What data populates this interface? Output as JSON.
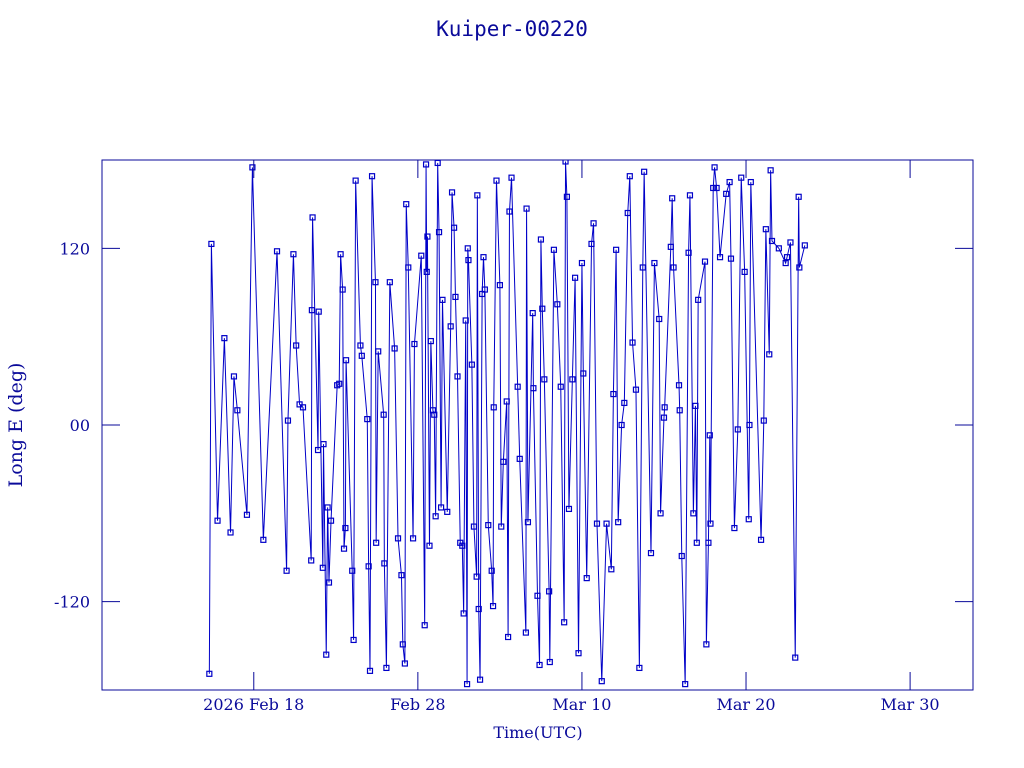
{
  "chart_data": {
    "type": "line",
    "title": "Kuiper-00220",
    "x_label": "Time(UTC)",
    "y_label": "Long E (deg)",
    "color": "#0000c8",
    "markers": "square",
    "xlim": [
      "2026-02-08T18:00Z",
      "2026-04-02T20:00Z"
    ],
    "xticks": [
      {
        "value": "2026-02-18T00:00Z",
        "label": "2026 Feb 18"
      },
      {
        "value": "2026-02-28T00:00Z",
        "label": "Feb 28"
      },
      {
        "value": "2026-03-10T00:00Z",
        "label": "Mar 10"
      },
      {
        "value": "2026-03-20T00:00Z",
        "label": "Mar 20"
      },
      {
        "value": "2026-03-30T00:00Z",
        "label": "Mar 30"
      }
    ],
    "ylim": [
      -180,
      180
    ],
    "yticks": [
      -120,
      {
        "value": 0,
        "label": "00"
      },
      120
    ],
    "x": [
      "2026-02-15T07:00Z",
      "2026-02-15T10:00Z",
      "2026-02-15T19:00Z",
      "2026-02-16T05:00Z",
      "2026-02-16T14:00Z",
      "2026-02-16T19:00Z",
      "2026-02-17T00:00Z",
      "2026-02-17T14:00Z",
      "2026-02-17T22:00Z",
      "2026-02-18T14:00Z",
      "2026-02-19T10:00Z",
      "2026-02-20T00:00Z",
      "2026-02-20T02:00Z",
      "2026-02-20T10:00Z",
      "2026-02-20T14:00Z",
      "2026-02-20T19:00Z",
      "2026-02-21T00:00Z",
      "2026-02-21T12:00Z",
      "2026-02-21T13:00Z",
      "2026-02-21T14:00Z",
      "2026-02-21T22:00Z",
      "2026-02-21T23:00Z",
      "2026-02-22T05:00Z",
      "2026-02-22T06:00Z",
      "2026-02-22T10:00Z",
      "2026-02-22T12:00Z",
      "2026-02-22T14:00Z",
      "2026-02-22T17:00Z",
      "2026-02-23T02:00Z",
      "2026-02-23T05:00Z",
      "2026-02-23T07:00Z",
      "2026-02-23T10:00Z",
      "2026-02-23T12:00Z",
      "2026-02-23T14:00Z",
      "2026-02-23T15:00Z",
      "2026-02-24T00:00Z",
      "2026-02-24T02:00Z",
      "2026-02-24T05:00Z",
      "2026-02-24T12:00Z",
      "2026-02-24T14:00Z",
      "2026-02-24T22:00Z",
      "2026-02-25T00:00Z",
      "2026-02-25T02:00Z",
      "2026-02-25T05:00Z",
      "2026-02-25T10:00Z",
      "2026-02-25T11:00Z",
      "2026-02-25T14:00Z",
      "2026-02-25T22:00Z",
      "2026-02-25T23:00Z",
      "2026-02-26T02:00Z",
      "2026-02-26T07:00Z",
      "2026-02-26T14:00Z",
      "2026-02-26T19:00Z",
      "2026-02-27T00:00Z",
      "2026-02-27T02:00Z",
      "2026-02-27T05:00Z",
      "2026-02-27T07:00Z",
      "2026-02-27T10:00Z",
      "2026-02-27T17:00Z",
      "2026-02-27T19:00Z",
      "2026-02-28T05:00Z",
      "2026-02-28T10:00Z",
      "2026-02-28T12:00Z",
      "2026-02-28T13:00Z",
      "2026-02-28T14:00Z",
      "2026-02-28T17:00Z",
      "2026-02-28T19:00Z",
      "2026-02-28T22:00Z",
      "2026-03-01T00:00Z",
      "2026-03-01T02:00Z",
      "2026-03-01T05:00Z",
      "2026-03-01T07:00Z",
      "2026-03-01T10:00Z",
      "2026-03-01T12:00Z",
      "2026-03-01T19:00Z",
      "2026-03-02T00:00Z",
      "2026-03-02T02:00Z",
      "2026-03-02T05:00Z",
      "2026-03-02T07:00Z",
      "2026-03-02T10:00Z",
      "2026-03-02T14:00Z",
      "2026-03-02T17:00Z",
      "2026-03-02T19:00Z",
      "2026-03-02T22:00Z",
      "2026-03-03T00:00Z",
      "2026-03-03T01:00Z",
      "2026-03-03T02:00Z",
      "2026-03-03T07:00Z",
      "2026-03-03T10:00Z",
      "2026-03-03T14:00Z",
      "2026-03-03T15:00Z",
      "2026-03-03T17:00Z",
      "2026-03-03T19:00Z",
      "2026-03-03T22:00Z",
      "2026-03-04T00:00Z",
      "2026-03-04T02:00Z",
      "2026-03-04T07:00Z",
      "2026-03-04T12:00Z",
      "2026-03-04T14:00Z",
      "2026-03-04T15:00Z",
      "2026-03-04T19:00Z",
      "2026-03-05T00:00Z",
      "2026-03-05T02:00Z",
      "2026-03-05T05:00Z",
      "2026-03-05T10:00Z",
      "2026-03-05T12:00Z",
      "2026-03-05T14:00Z",
      "2026-03-05T17:00Z",
      "2026-03-06T02:00Z",
      "2026-03-06T05:00Z",
      "2026-03-06T14:00Z",
      "2026-03-06T15:00Z",
      "2026-03-06T17:00Z",
      "2026-03-07T00:00Z",
      "2026-03-07T01:00Z",
      "2026-03-07T07:00Z",
      "2026-03-07T10:00Z",
      "2026-03-07T12:00Z",
      "2026-03-07T14:00Z",
      "2026-03-07T17:00Z",
      "2026-03-08T00:00Z",
      "2026-03-08T01:00Z",
      "2026-03-08T07:00Z",
      "2026-03-08T12:00Z",
      "2026-03-08T17:00Z",
      "2026-03-08T22:00Z",
      "2026-03-09T00:00Z",
      "2026-03-09T02:00Z",
      "2026-03-09T05:00Z",
      "2026-03-09T10:00Z",
      "2026-03-09T14:00Z",
      "2026-03-09T19:00Z",
      "2026-03-10T00:00Z",
      "2026-03-10T02:00Z",
      "2026-03-10T07:00Z",
      "2026-03-10T14:00Z",
      "2026-03-10T17:00Z",
      "2026-03-10T22:00Z",
      "2026-03-11T05:00Z",
      "2026-03-11T12:00Z",
      "2026-03-11T19:00Z",
      "2026-03-11T22:00Z",
      "2026-03-12T02:00Z",
      "2026-03-12T05:00Z",
      "2026-03-12T10:00Z",
      "2026-03-12T14:00Z",
      "2026-03-12T19:00Z",
      "2026-03-12T22:00Z",
      "2026-03-13T02:00Z",
      "2026-03-13T07:00Z",
      "2026-03-13T12:00Z",
      "2026-03-13T17:00Z",
      "2026-03-13T19:00Z",
      "2026-03-14T05:00Z",
      "2026-03-14T10:00Z",
      "2026-03-14T17:00Z",
      "2026-03-14T19:00Z",
      "2026-03-15T00:00Z",
      "2026-03-15T01:00Z",
      "2026-03-15T10:00Z",
      "2026-03-15T12:00Z",
      "2026-03-15T14:00Z",
      "2026-03-15T22:00Z",
      "2026-03-15T23:00Z",
      "2026-03-16T02:00Z",
      "2026-03-16T07:00Z",
      "2026-03-16T12:00Z",
      "2026-03-16T14:00Z",
      "2026-03-16T19:00Z",
      "2026-03-16T22:00Z",
      "2026-03-17T00:00Z",
      "2026-03-17T02:00Z",
      "2026-03-17T12:00Z",
      "2026-03-17T14:00Z",
      "2026-03-17T17:00Z",
      "2026-03-17T19:00Z",
      "2026-03-17T20:00Z",
      "2026-03-18T00:00Z",
      "2026-03-18T02:00Z",
      "2026-03-18T05:00Z",
      "2026-03-18T10:00Z",
      "2026-03-18T19:00Z",
      "2026-03-19T00:00Z",
      "2026-03-19T02:00Z",
      "2026-03-19T07:00Z",
      "2026-03-19T12:00Z",
      "2026-03-19T17:00Z",
      "2026-03-19T22:00Z",
      "2026-03-20T04:00Z",
      "2026-03-20T05:00Z",
      "2026-03-20T07:00Z",
      "2026-03-20T22:00Z",
      "2026-03-21T02:00Z",
      "2026-03-21T05:00Z",
      "2026-03-21T10:00Z",
      "2026-03-21T12:00Z",
      "2026-03-21T14:00Z",
      "2026-03-22T00:00Z",
      "2026-03-22T10:00Z",
      "2026-03-22T12:00Z",
      "2026-03-22T17:00Z",
      "2026-03-23T00:00Z",
      "2026-03-23T05:00Z",
      "2026-03-23T06:00Z",
      "2026-03-23T14:00Z"
    ],
    "values": [
      -169,
      123,
      -65,
      59,
      -73,
      33,
      10,
      -61,
      175,
      -78,
      118,
      -99,
      3,
      116,
      54,
      14,
      12,
      -92,
      78,
      141,
      -17,
      77,
      -97,
      -13,
      -156,
      -56,
      -107,
      -65,
      27,
      28,
      116,
      92,
      -84,
      -70,
      44,
      -99,
      -146,
      166,
      54,
      47,
      4,
      -96,
      -167,
      169,
      97,
      -80,
      50,
      7,
      -94,
      -165,
      97,
      52,
      -77,
      -102,
      -149,
      -162,
      150,
      107,
      -77,
      55,
      115,
      -136,
      177,
      104,
      128,
      -82,
      57,
      10,
      7,
      -62,
      178,
      131,
      -56,
      85,
      -59,
      67,
      158,
      134,
      87,
      33,
      -80,
      -82,
      -128,
      71,
      -176,
      120,
      112,
      41,
      -69,
      -103,
      156,
      -125,
      -173,
      89,
      114,
      92,
      -68,
      -99,
      -123,
      12,
      166,
      95,
      -69,
      -25,
      16,
      -144,
      145,
      168,
      26,
      -23,
      -141,
      147,
      -66,
      76,
      25,
      -116,
      -163,
      126,
      79,
      31,
      -113,
      -161,
      119,
      82,
      26,
      -134,
      179,
      155,
      -57,
      31,
      100,
      -155,
      110,
      35,
      -104,
      123,
      137,
      -67,
      -174,
      -67,
      -98,
      21,
      119,
      -66,
      0,
      15,
      144,
      169,
      56,
      24,
      -165,
      107,
      172,
      -87,
      110,
      72,
      -60,
      5,
      12,
      121,
      154,
      107,
      27,
      10,
      -89,
      -176,
      117,
      156,
      -60,
      13,
      -80,
      85,
      111,
      -149,
      -80,
      -7,
      -67,
      161,
      175,
      161,
      114,
      157,
      165,
      113,
      -70,
      -3,
      168,
      104,
      -64,
      0,
      165,
      -78,
      3,
      133,
      48,
      173,
      125,
      120,
      110,
      114,
      124,
      -158,
      155,
      107,
      122
    ]
  }
}
